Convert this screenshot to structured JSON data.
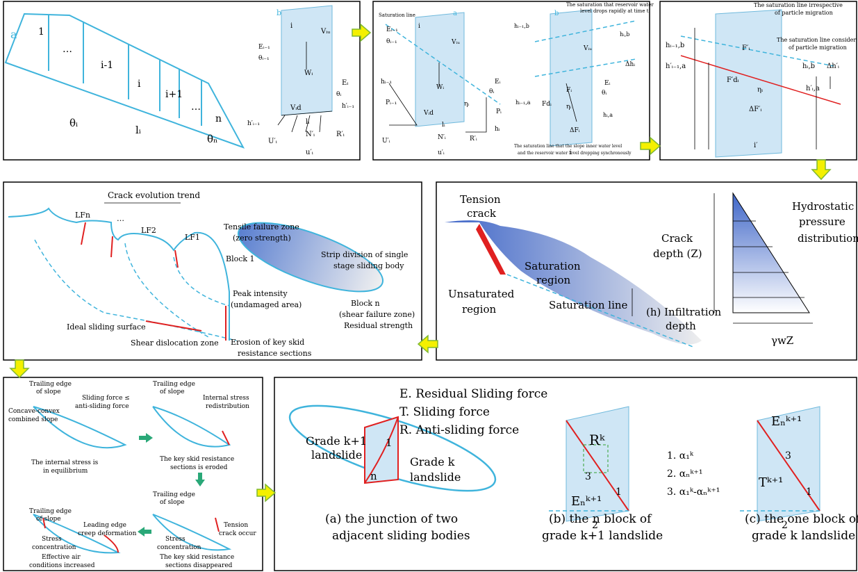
{
  "panel_1": {
    "texts": [
      "a",
      "1",
      "…",
      "i-1",
      "i",
      "i+1",
      "…",
      "n",
      "θᵢ",
      "lᵢ",
      "θₙ",
      "b",
      "i",
      "Vᵢᵤ",
      "Wᵢ",
      "Eᵢ₋₁",
      "θᵢ₋₁",
      "Eᵢ",
      "θᵢ",
      "Vᵢd",
      "lᵢ",
      "N′ᵢ",
      "U′ᵢ",
      "u′ᵢ",
      "R′ᵢ",
      "h′ᵢ₋₁",
      "h′ᵢ₋₁"
    ]
  },
  "panel_2": {
    "texts": [
      "Saturation line",
      "a",
      "b",
      "The saturation that reservoir water",
      "level drops rapidly at time t",
      "hᵢ₋₁",
      "Pᵢ₋₁",
      "Eᵢ₋₁",
      "θᵢ₋₁",
      "i",
      "Vᵢᵤ",
      "Wᵢ",
      "ηᵢ",
      "Eᵢ",
      "θᵢ",
      "Vᵢd",
      "lᵢ",
      "Pᵢ",
      "hᵢ",
      "N′ᵢ",
      "U′ᵢ",
      "R′ᵢ",
      "u′ᵢ",
      "hᵢ₋₁,b",
      "hᵢ₋₁,a",
      "Vᵢᵤ",
      "Fᵢ",
      "Fdᵢ",
      "ηᵢ",
      "ΔFᵢ",
      "i",
      "Eᵢ",
      "θᵢ",
      "hᵢ,b",
      "Δhᵢ",
      "hᵢ,a",
      "The saturation line that the slope inner water level",
      "and the reservoir water level dropping synchronously"
    ]
  },
  "panel_3": {
    "texts": [
      "The saturation line irrespective",
      "of particle migration",
      "The saturation line consider",
      "of particle migration",
      "hᵢ₋₁,b",
      "h′ᵢ₋₁,a",
      "F′ᵢ",
      "F′dᵢ",
      "ηᵢ",
      "ΔF′ᵢ",
      "i′",
      "hᵢ,b",
      "Δh′ᵢ",
      "h′ᵢ,a"
    ]
  },
  "panel_4": {
    "texts": [
      "Crack evolution trend",
      "LFn",
      "…",
      "LF2",
      "LF1",
      "Tensile failure zone",
      "(zero strength)",
      "Block 1",
      "Strip division of single",
      "stage sliding body",
      "Block n",
      "Peak intensity",
      "(undamaged area)",
      "(shear failure zone)",
      "Residual strength",
      "Ideal sliding surface",
      "Shear dislocation zone",
      "Erosion of key skid",
      "resistance sections"
    ]
  },
  "panel_5": {
    "texts": [
      "Tension",
      "crack",
      "Saturation",
      "region",
      "Unsaturated",
      "region",
      "Saturation line",
      "(h) Infiltration",
      "depth",
      "Crack",
      "depth (Z)",
      "Hydrostatic",
      "pressure",
      "distribution",
      "γwZ"
    ]
  },
  "panel_6": {
    "texts": [
      "Trailing edge",
      "of slope",
      "Sliding force ≤",
      "anti-sliding force",
      "Concave-convex",
      "combined slope",
      "The internal stress is",
      "in equilibrium",
      "Trailing edge",
      "of slope",
      "Internal stress",
      "redistribution",
      "The key skid resistance",
      "sections is eroded",
      "Trailing edge",
      "of slope",
      "Tension",
      "crack occur",
      "Stress",
      "concentration",
      "The key skid resistance",
      "sections disappeared",
      "Trailing edge",
      "of slope",
      "Leading edge",
      "creep deformation",
      "Stress",
      "concentration",
      "Effective air",
      "conditions increased"
    ]
  },
  "panel_7": {
    "texts": [
      "E. Residual Sliding force",
      "T. Sliding force",
      "R. Anti-sliding force",
      "Grade k+1",
      "landslide",
      "1",
      "n",
      "Grade k",
      "landslide",
      "(a) the junction of two",
      "adjacent sliding bodies",
      "Rᵏ",
      "3",
      "Eₙᵏ⁺¹",
      "1",
      "2",
      "(b) the n block of",
      "grade k+1 landslide",
      "1. α₁ᵏ",
      "2. αₙᵏ⁺¹",
      "3. α₁ᵏ-αₙᵏ⁺¹",
      "Eₙᵏ⁺¹",
      "3",
      "Tᵏ⁺¹",
      "1",
      "2",
      "(c) the one block of",
      "grade k landslide"
    ]
  }
}
